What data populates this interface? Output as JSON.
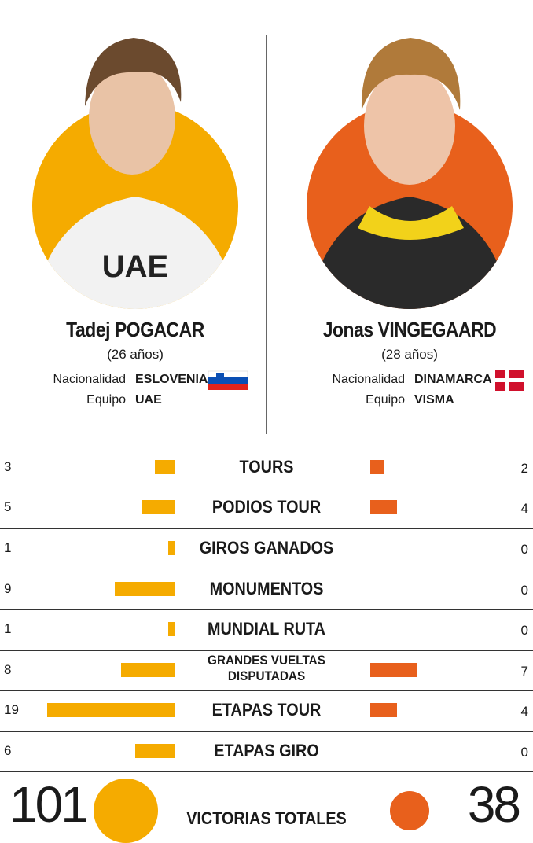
{
  "riders": [
    {
      "age": "(26 años)",
      "nationality_label": "Nacionalidad",
      "nationality": "ESLOVENIA",
      "team_label": "Equipo",
      "team": "UAE"
    },
    {
      "age": "(28 años)",
      "nationality_label": "Nacionalidad",
      "nationality": "DINAMARCA",
      "team_label": "Equipo",
      "team": "VISMA"
    }
  ],
  "chart_data": {
    "type": "butterfly-bar",
    "categories": [
      "TOURS",
      "PODIOS TOUR",
      "GIROS GANADOS",
      "MONUMENTOS",
      "MUNDIAL RUTA",
      "GRANDES VUELTAS DISPUTADAS",
      "ETAPAS TOUR",
      "ETAPAS GIRO"
    ],
    "series": [
      {
        "name": "Tadej POGACAR",
        "color": "#f5ab00",
        "values": [
          3,
          5,
          1,
          9,
          1,
          8,
          19,
          6
        ]
      },
      {
        "name": "Jonas VINGEGAARD",
        "color": "#e8601c",
        "values": [
          2,
          4,
          0,
          0,
          0,
          7,
          4,
          0
        ]
      }
    ],
    "totals": {
      "label": "VICTORIAS TOTALES",
      "values": [
        101,
        38
      ]
    }
  }
}
